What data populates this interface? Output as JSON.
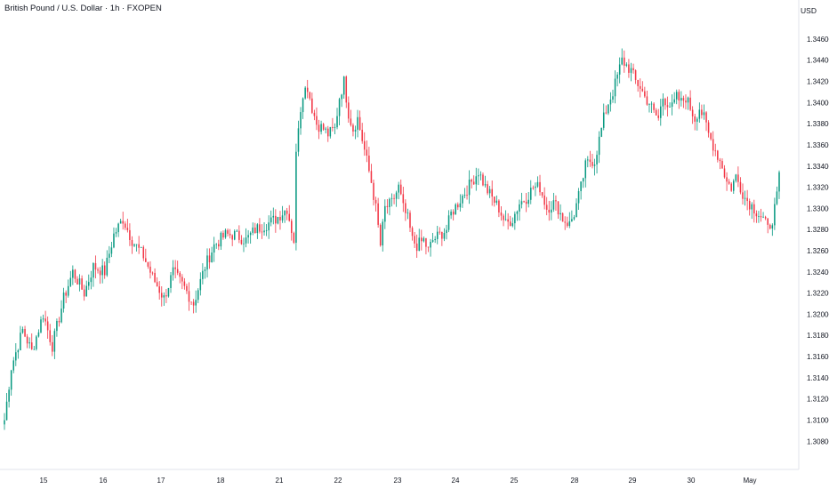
{
  "header": {
    "title": "British Pound / U.S. Dollar · 1h · FXOPEN",
    "currency": "USD"
  },
  "chart_data": {
    "type": "candlestick",
    "title": "British Pound / U.S. Dollar · 1h · FXOPEN",
    "currency": "USD",
    "ylim": [
      1.3071,
      1.347
    ],
    "y_ticks": [
      "1.34600",
      "1.34400",
      "1.34200",
      "1.34000",
      "1.33800",
      "1.33600",
      "1.33400",
      "1.33200",
      "1.33000",
      "1.32800",
      "1.32600",
      "1.32400",
      "1.32200",
      "1.32000",
      "1.31800",
      "1.31600",
      "1.31400",
      "1.31200",
      "1.31000",
      "1.30800"
    ],
    "x_ticks": [
      "15",
      "16",
      "17",
      "18",
      "21",
      "22",
      "23",
      "24",
      "25",
      "28",
      "29",
      "30",
      "May"
    ],
    "grid": false,
    "colors": {
      "up": "#089981",
      "down": "#f23645",
      "up_wick": "#089981",
      "down_wick": "#f23645"
    },
    "close_path": [
      [
        0,
        1.31
      ],
      [
        3,
        1.315
      ],
      [
        8,
        1.3185
      ],
      [
        12,
        1.3165
      ],
      [
        17,
        1.32
      ],
      [
        21,
        1.317
      ],
      [
        26,
        1.3215
      ],
      [
        30,
        1.324
      ],
      [
        35,
        1.322
      ],
      [
        39,
        1.3245
      ],
      [
        44,
        1.324
      ],
      [
        48,
        1.3275
      ],
      [
        52,
        1.329
      ],
      [
        56,
        1.327
      ],
      [
        61,
        1.3255
      ],
      [
        65,
        1.3235
      ],
      [
        70,
        1.3215
      ],
      [
        74,
        1.324
      ],
      [
        79,
        1.3225
      ],
      [
        83,
        1.321
      ],
      [
        88,
        1.3245
      ],
      [
        92,
        1.3265
      ],
      [
        97,
        1.3275
      ],
      [
        101,
        1.3275
      ],
      [
        106,
        1.327
      ],
      [
        110,
        1.328
      ],
      [
        115,
        1.3285
      ],
      [
        119,
        1.329
      ],
      [
        124,
        1.33
      ],
      [
        127,
        1.327
      ],
      [
        128,
        1.335
      ],
      [
        129,
        1.338
      ],
      [
        131,
        1.341
      ],
      [
        133,
        1.3415
      ],
      [
        135,
        1.3395
      ],
      [
        137,
        1.338
      ],
      [
        140,
        1.3375
      ],
      [
        142,
        1.337
      ],
      [
        145,
        1.3375
      ],
      [
        147,
        1.3405
      ],
      [
        149,
        1.342
      ],
      [
        151,
        1.339
      ],
      [
        153,
        1.3375
      ],
      [
        155,
        1.3385
      ],
      [
        157,
        1.3365
      ],
      [
        159,
        1.3345
      ],
      [
        161,
        1.3325
      ],
      [
        163,
        1.33
      ],
      [
        165,
        1.3265
      ],
      [
        167,
        1.33
      ],
      [
        170,
        1.3305
      ],
      [
        173,
        1.332
      ],
      [
        175,
        1.33
      ],
      [
        177,
        1.329
      ],
      [
        179,
        1.327
      ],
      [
        181,
        1.3265
      ],
      [
        184,
        1.327
      ],
      [
        186,
        1.326
      ],
      [
        188,
        1.327
      ],
      [
        191,
        1.3275
      ],
      [
        194,
        1.328
      ],
      [
        196,
        1.3295
      ],
      [
        199,
        1.3305
      ],
      [
        202,
        1.3315
      ],
      [
        205,
        1.3325
      ],
      [
        208,
        1.3335
      ],
      [
        211,
        1.332
      ],
      [
        214,
        1.331
      ],
      [
        217,
        1.33
      ],
      [
        220,
        1.3285
      ],
      [
        223,
        1.329
      ],
      [
        226,
        1.3305
      ],
      [
        229,
        1.331
      ],
      [
        232,
        1.332
      ],
      [
        235,
        1.332
      ],
      [
        238,
        1.33
      ],
      [
        241,
        1.3305
      ],
      [
        243,
        1.33
      ],
      [
        245,
        1.329
      ],
      [
        248,
        1.3285
      ],
      [
        250,
        1.3295
      ],
      [
        253,
        1.332
      ],
      [
        255,
        1.334
      ],
      [
        257,
        1.3345
      ],
      [
        259,
        1.3345
      ],
      [
        261,
        1.3365
      ],
      [
        263,
        1.3385
      ],
      [
        265,
        1.34
      ],
      [
        267,
        1.341
      ],
      [
        269,
        1.3425
      ],
      [
        271,
        1.344
      ],
      [
        273,
        1.3435
      ],
      [
        275,
        1.343
      ],
      [
        277,
        1.342
      ],
      [
        279,
        1.3415
      ],
      [
        281,
        1.3405
      ],
      [
        283,
        1.34
      ],
      [
        285,
        1.339
      ],
      [
        287,
        1.3385
      ],
      [
        289,
        1.3405
      ],
      [
        291,
        1.34
      ],
      [
        293,
        1.3395
      ],
      [
        295,
        1.3405
      ],
      [
        297,
        1.34
      ],
      [
        299,
        1.3405
      ],
      [
        301,
        1.3395
      ],
      [
        303,
        1.3385
      ],
      [
        305,
        1.3395
      ],
      [
        307,
        1.3385
      ],
      [
        309,
        1.337
      ],
      [
        311,
        1.336
      ],
      [
        313,
        1.335
      ],
      [
        315,
        1.334
      ],
      [
        317,
        1.3325
      ],
      [
        319,
        1.332
      ],
      [
        321,
        1.333
      ],
      [
        323,
        1.332
      ],
      [
        325,
        1.331
      ],
      [
        327,
        1.3305
      ],
      [
        329,
        1.33
      ],
      [
        331,
        1.3295
      ],
      [
        333,
        1.329
      ],
      [
        335,
        1.328
      ],
      [
        337,
        1.329
      ],
      [
        339,
        1.331
      ],
      [
        340,
        1.333
      ]
    ]
  }
}
